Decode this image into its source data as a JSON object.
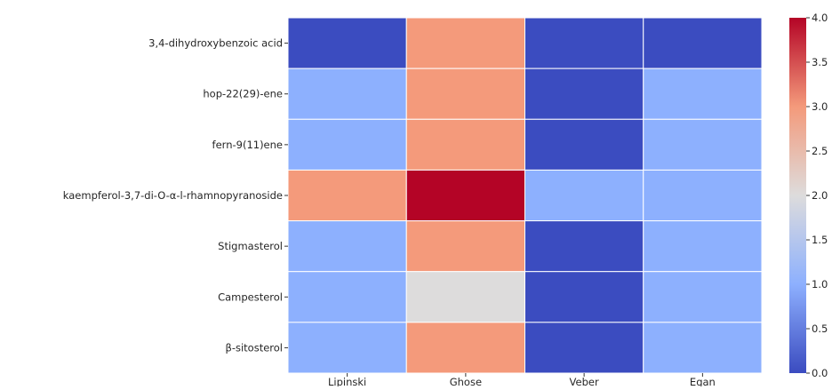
{
  "chart_data": {
    "type": "heatmap",
    "title": "",
    "xlabel": "",
    "ylabel": "",
    "x_categories": [
      "Lipinski",
      "Ghose",
      "Veber",
      "Egan"
    ],
    "y_categories": [
      "3,4-dihydroxybenzoic acid",
      "hop-22(29)-ene",
      "fern-9(11)ene",
      "kaempferol-3,7-di-O-α-l-rhamnopyranoside",
      "Stigmasterol",
      "Campesterol",
      "β-sitosterol"
    ],
    "values": [
      [
        0,
        3,
        0,
        0
      ],
      [
        1,
        3,
        0,
        1
      ],
      [
        1,
        3,
        0,
        1
      ],
      [
        3,
        4,
        1,
        1
      ],
      [
        1,
        3,
        0,
        1
      ],
      [
        1,
        2,
        0,
        1
      ],
      [
        1,
        3,
        0,
        1
      ]
    ],
    "colorbar": {
      "vmin": 0.0,
      "vmax": 4.0,
      "ticks": [
        "0.0",
        "0.5",
        "1.0",
        "1.5",
        "2.0",
        "2.5",
        "3.0",
        "3.5",
        "4.0"
      ],
      "colormap": "coolwarm",
      "position": "right"
    },
    "colors": {
      "0": "#3b4cc0",
      "1": "#8db0fe",
      "2": "#dddcdc",
      "3": "#f49a7b",
      "4": "#b40426"
    }
  }
}
